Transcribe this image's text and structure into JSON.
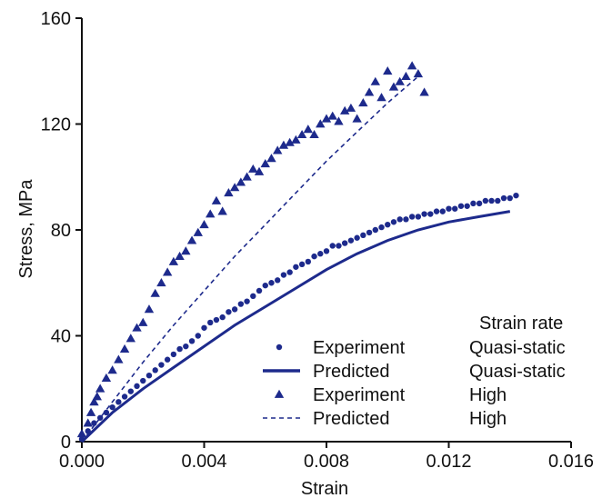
{
  "chart_data": {
    "type": "scatter",
    "title": "",
    "xlabel": "Strain",
    "ylabel": "Stress, MPa",
    "xlim": [
      0,
      0.016
    ],
    "ylim": [
      0,
      160
    ],
    "x_ticks": [
      "0.000",
      "0.004",
      "0.008",
      "0.012",
      "0.016"
    ],
    "y_ticks": [
      "0",
      "40",
      "80",
      "120",
      "160"
    ],
    "grid": false,
    "legend": {
      "header": "Strain rate",
      "placement": "bottom-right",
      "entries": [
        {
          "label": "Experiment",
          "rate": "Quasi-static"
        },
        {
          "label": "Predicted",
          "rate": "Quasi-static"
        },
        {
          "label": "Experiment",
          "rate": "High"
        },
        {
          "label": "Predicted",
          "rate": "High"
        }
      ]
    },
    "series": [
      {
        "name": "Experiment Quasi-static",
        "kind": "points",
        "marker": "circle",
        "color": "#1d2a8c",
        "x": [
          0.0,
          0.0002,
          0.0004,
          0.0006,
          0.0008,
          0.001,
          0.0012,
          0.0014,
          0.0016,
          0.0018,
          0.002,
          0.0022,
          0.0024,
          0.0026,
          0.0028,
          0.003,
          0.0032,
          0.0034,
          0.0036,
          0.0038,
          0.004,
          0.0042,
          0.0044,
          0.0046,
          0.0048,
          0.005,
          0.0052,
          0.0054,
          0.0056,
          0.0058,
          0.006,
          0.0062,
          0.0064,
          0.0066,
          0.0068,
          0.007,
          0.0072,
          0.0074,
          0.0076,
          0.0078,
          0.008,
          0.0082,
          0.0084,
          0.0086,
          0.0088,
          0.009,
          0.0092,
          0.0094,
          0.0096,
          0.0098,
          0.01,
          0.0102,
          0.0104,
          0.0106,
          0.0108,
          0.011,
          0.0112,
          0.0114,
          0.0116,
          0.0118,
          0.012,
          0.0122,
          0.0124,
          0.0126,
          0.0128,
          0.013,
          0.0132,
          0.0134,
          0.0136,
          0.0138,
          0.014,
          0.0142
        ],
        "y": [
          1,
          4,
          7,
          9,
          11,
          13,
          15,
          17,
          19,
          21,
          23,
          25,
          27,
          29,
          31,
          33,
          35,
          36,
          38,
          40,
          43,
          45,
          46,
          47,
          49,
          50,
          52,
          53,
          55,
          57,
          59,
          60,
          61,
          63,
          64,
          66,
          67,
          68,
          70,
          71,
          72,
          74,
          74,
          75,
          76,
          77,
          78,
          79,
          80,
          81,
          82,
          83,
          84,
          84,
          85,
          85,
          86,
          86,
          87,
          87,
          88,
          88,
          89,
          89,
          90,
          90,
          91,
          91,
          91,
          92,
          92,
          93
        ]
      },
      {
        "name": "Predicted Quasi-static",
        "kind": "line",
        "style": "solid",
        "color": "#1d2a8c",
        "x": [
          0.0,
          0.001,
          0.002,
          0.003,
          0.004,
          0.005,
          0.006,
          0.007,
          0.008,
          0.009,
          0.01,
          0.011,
          0.012,
          0.013,
          0.014
        ],
        "y": [
          0,
          11,
          20,
          28,
          36,
          44,
          51,
          58,
          65,
          71,
          76,
          80,
          83,
          85,
          87
        ]
      },
      {
        "name": "Experiment High",
        "kind": "points",
        "marker": "triangle",
        "color": "#1d2a8c",
        "x": [
          0.0,
          0.0002,
          0.0003,
          0.0004,
          0.0005,
          0.0006,
          0.0008,
          0.001,
          0.0012,
          0.0014,
          0.0016,
          0.0018,
          0.002,
          0.0022,
          0.0024,
          0.0026,
          0.0028,
          0.003,
          0.0032,
          0.0034,
          0.0036,
          0.0038,
          0.004,
          0.0042,
          0.0044,
          0.0046,
          0.0048,
          0.005,
          0.0052,
          0.0054,
          0.0056,
          0.0058,
          0.006,
          0.0062,
          0.0064,
          0.0066,
          0.0068,
          0.007,
          0.0072,
          0.0074,
          0.0076,
          0.0078,
          0.008,
          0.0082,
          0.0084,
          0.0086,
          0.0088,
          0.009,
          0.0092,
          0.0094,
          0.0096,
          0.0098,
          0.01,
          0.0102,
          0.0104,
          0.0106,
          0.0108,
          0.011,
          0.0112
        ],
        "y": [
          3,
          7,
          11,
          15,
          17,
          20,
          24,
          27,
          31,
          35,
          39,
          43,
          45,
          50,
          56,
          60,
          64,
          68,
          70,
          72,
          76,
          79,
          82,
          86,
          91,
          87,
          94,
          96,
          98,
          100,
          103,
          102,
          105,
          107,
          110,
          112,
          113,
          114,
          116,
          118,
          116,
          120,
          122,
          123,
          121,
          125,
          126,
          122,
          128,
          132,
          136,
          130,
          140,
          134,
          136,
          138,
          142,
          139,
          132
        ]
      },
      {
        "name": "Predicted High",
        "kind": "line",
        "style": "dashed",
        "color": "#1d2a8c",
        "x": [
          0.0,
          0.001,
          0.002,
          0.003,
          0.004,
          0.005,
          0.006,
          0.007,
          0.008,
          0.009,
          0.01,
          0.011
        ],
        "y": [
          0,
          15,
          30,
          44,
          57,
          70,
          82,
          94,
          106,
          117,
          128,
          138
        ]
      }
    ]
  }
}
